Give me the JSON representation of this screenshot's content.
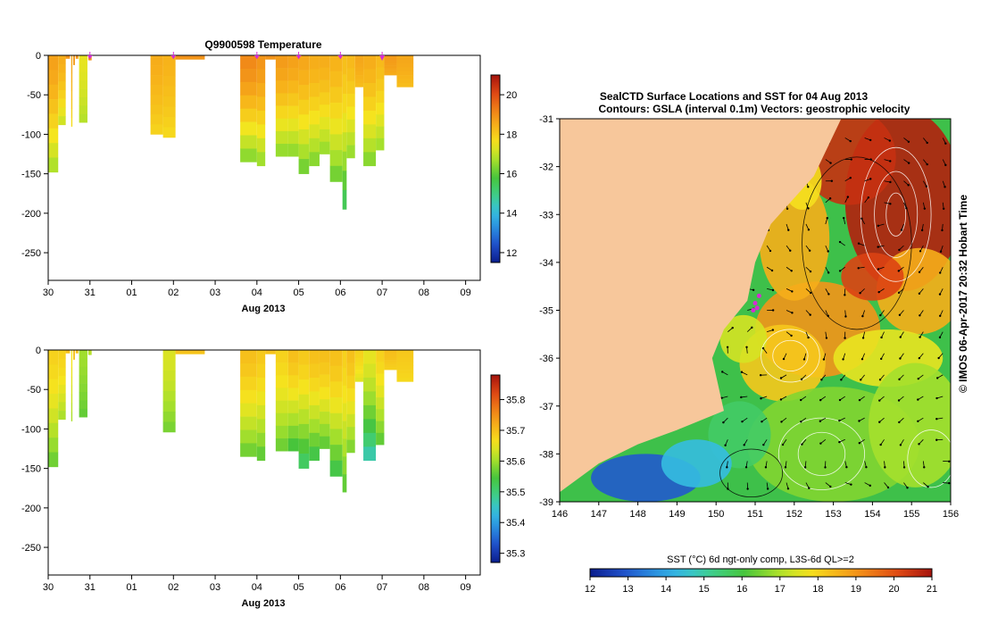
{
  "colors": {
    "land": "#f7c79b",
    "marker": "#d42cd4",
    "white": "#ffffff"
  },
  "chart_data": [
    {
      "type": "heatmap",
      "title": "Q9900598  Temperature",
      "xlabel": "Aug 2013",
      "ylabel": "",
      "x_ticks": [
        "30",
        "31",
        "01",
        "02",
        "03",
        "04",
        "05",
        "06",
        "07",
        "08",
        "09"
      ],
      "y_ticks": [
        "0",
        "-50",
        "-100",
        "-150",
        "-200",
        "-250"
      ],
      "ylim": [
        -285,
        0
      ],
      "colorbar": {
        "range": [
          11.5,
          21
        ],
        "ticks": [
          "12",
          "14",
          "16",
          "18",
          "20"
        ]
      },
      "profile_markers_day": [
        1,
        3,
        5,
        6,
        7,
        8
      ],
      "casts": [
        {
          "start": 0.0,
          "end": 0.24,
          "depth": -148,
          "surface": 18.7,
          "bottom": 16.6
        },
        {
          "start": 0.24,
          "end": 0.42,
          "depth": -88,
          "surface": 18.5,
          "bottom": 17.0
        },
        {
          "start": 0.42,
          "end": 0.52,
          "depth": -4,
          "surface": 19.0,
          "bottom": 18.8
        },
        {
          "start": 0.55,
          "end": 0.58,
          "depth": -90,
          "surface": 18.6,
          "bottom": 17.6
        },
        {
          "start": 0.6,
          "end": 0.64,
          "depth": -12,
          "surface": 18.9,
          "bottom": 18.7
        },
        {
          "start": 0.66,
          "end": 0.72,
          "depth": -4,
          "surface": 19.0,
          "bottom": 18.8
        },
        {
          "start": 0.74,
          "end": 0.94,
          "depth": -85,
          "surface": 17.4,
          "bottom": 16.8
        },
        {
          "start": 0.96,
          "end": 1.04,
          "depth": -6,
          "surface": 19.0,
          "bottom": 18.9
        },
        {
          "start": 2.45,
          "end": 2.75,
          "depth": -100,
          "surface": 18.5,
          "bottom": 17.8
        },
        {
          "start": 2.75,
          "end": 3.05,
          "depth": -104,
          "surface": 18.4,
          "bottom": 17.7
        },
        {
          "start": 3.05,
          "end": 3.75,
          "depth": -5,
          "surface": 19.0,
          "bottom": 18.8
        },
        {
          "start": 4.6,
          "end": 5.0,
          "depth": -135,
          "surface": 19.1,
          "bottom": 16.2
        },
        {
          "start": 5.0,
          "end": 5.2,
          "depth": -140,
          "surface": 18.9,
          "bottom": 16.4
        },
        {
          "start": 5.2,
          "end": 5.45,
          "depth": -5,
          "surface": 19.0,
          "bottom": 18.8
        },
        {
          "start": 5.45,
          "end": 5.75,
          "depth": -128,
          "surface": 18.8,
          "bottom": 16.3
        },
        {
          "start": 5.75,
          "end": 6.0,
          "depth": -128,
          "surface": 18.7,
          "bottom": 16.3
        },
        {
          "start": 6.0,
          "end": 6.25,
          "depth": -150,
          "surface": 18.6,
          "bottom": 16.0
        },
        {
          "start": 6.25,
          "end": 6.5,
          "depth": -140,
          "surface": 18.5,
          "bottom": 16.2
        },
        {
          "start": 6.5,
          "end": 6.75,
          "depth": -125,
          "surface": 18.5,
          "bottom": 16.4
        },
        {
          "start": 6.75,
          "end": 7.05,
          "depth": -160,
          "surface": 18.4,
          "bottom": 16.0
        },
        {
          "start": 7.05,
          "end": 7.15,
          "depth": -195,
          "surface": 18.2,
          "bottom": 15.2
        },
        {
          "start": 7.15,
          "end": 7.35,
          "depth": -130,
          "surface": 18.3,
          "bottom": 16.4
        },
        {
          "start": 7.35,
          "end": 7.55,
          "depth": -40,
          "surface": 18.6,
          "bottom": 18.2
        },
        {
          "start": 7.55,
          "end": 7.85,
          "depth": -140,
          "surface": 18.5,
          "bottom": 16.2
        },
        {
          "start": 7.85,
          "end": 8.05,
          "depth": -120,
          "surface": 18.3,
          "bottom": 16.5
        },
        {
          "start": 8.05,
          "end": 8.35,
          "depth": -25,
          "surface": 18.8,
          "bottom": 18.5
        },
        {
          "start": 8.35,
          "end": 8.75,
          "depth": -40,
          "surface": 18.6,
          "bottom": 18.2
        }
      ]
    },
    {
      "type": "heatmap",
      "title": "",
      "xlabel": "Aug 2013",
      "ylabel": "",
      "x_ticks": [
        "30",
        "31",
        "01",
        "02",
        "03",
        "04",
        "05",
        "06",
        "07",
        "08",
        "09"
      ],
      "y_ticks": [
        "0",
        "-50",
        "-100",
        "-150",
        "-200",
        "-250"
      ],
      "ylim": [
        -285,
        0
      ],
      "colorbar": {
        "range": [
          35.27,
          35.88
        ],
        "ticks": [
          "35.3",
          "35.4",
          "35.5",
          "35.6",
          "35.7",
          "35.8"
        ]
      },
      "casts": [
        {
          "start": 0.0,
          "end": 0.24,
          "depth": -148,
          "surface": 35.68,
          "bottom": 35.56
        },
        {
          "start": 0.24,
          "end": 0.42,
          "depth": -88,
          "surface": 35.68,
          "bottom": 35.6
        },
        {
          "start": 0.42,
          "end": 0.52,
          "depth": -4,
          "surface": 35.7,
          "bottom": 35.69
        },
        {
          "start": 0.55,
          "end": 0.58,
          "depth": -90,
          "surface": 35.66,
          "bottom": 35.6
        },
        {
          "start": 0.6,
          "end": 0.64,
          "depth": -12,
          "surface": 35.7,
          "bottom": 35.69
        },
        {
          "start": 0.66,
          "end": 0.72,
          "depth": -4,
          "surface": 35.7,
          "bottom": 35.69
        },
        {
          "start": 0.74,
          "end": 0.94,
          "depth": -85,
          "surface": 35.6,
          "bottom": 35.56
        },
        {
          "start": 0.96,
          "end": 1.04,
          "depth": -6,
          "surface": 35.62,
          "bottom": 35.61
        },
        {
          "start": 2.75,
          "end": 3.05,
          "depth": -104,
          "surface": 35.64,
          "bottom": 35.57
        },
        {
          "start": 3.05,
          "end": 3.75,
          "depth": -5,
          "surface": 35.7,
          "bottom": 35.69
        },
        {
          "start": 4.6,
          "end": 5.0,
          "depth": -135,
          "surface": 35.7,
          "bottom": 35.56
        },
        {
          "start": 5.0,
          "end": 5.2,
          "depth": -140,
          "surface": 35.69,
          "bottom": 35.55
        },
        {
          "start": 5.2,
          "end": 5.45,
          "depth": -5,
          "surface": 35.7,
          "bottom": 35.69
        },
        {
          "start": 5.45,
          "end": 5.75,
          "depth": -128,
          "surface": 35.68,
          "bottom": 35.56
        },
        {
          "start": 5.75,
          "end": 6.0,
          "depth": -128,
          "surface": 35.7,
          "bottom": 35.53
        },
        {
          "start": 6.0,
          "end": 6.25,
          "depth": -150,
          "surface": 35.69,
          "bottom": 35.5
        },
        {
          "start": 6.25,
          "end": 6.5,
          "depth": -140,
          "surface": 35.7,
          "bottom": 35.52
        },
        {
          "start": 6.5,
          "end": 6.75,
          "depth": -125,
          "surface": 35.7,
          "bottom": 35.55
        },
        {
          "start": 6.75,
          "end": 7.05,
          "depth": -160,
          "surface": 35.7,
          "bottom": 35.52
        },
        {
          "start": 7.05,
          "end": 7.15,
          "depth": -180,
          "surface": 35.68,
          "bottom": 35.55
        },
        {
          "start": 7.15,
          "end": 7.35,
          "depth": -130,
          "surface": 35.7,
          "bottom": 35.57
        },
        {
          "start": 7.35,
          "end": 7.55,
          "depth": -40,
          "surface": 35.68,
          "bottom": 35.64
        },
        {
          "start": 7.55,
          "end": 7.85,
          "depth": -140,
          "surface": 35.65,
          "bottom": 35.45
        },
        {
          "start": 7.85,
          "end": 8.05,
          "depth": -120,
          "surface": 35.68,
          "bottom": 35.55
        },
        {
          "start": 8.05,
          "end": 8.35,
          "depth": -25,
          "surface": 35.7,
          "bottom": 35.68
        },
        {
          "start": 8.35,
          "end": 8.75,
          "depth": -40,
          "surface": 35.69,
          "bottom": 35.67
        }
      ]
    },
    {
      "type": "map",
      "title": "SealCTD Surface Locations and SST for 04 Aug 2013",
      "subtitle": "Contours: GSLA (interval 0.1m) Vectors: geostrophic velocity",
      "xlim": [
        146,
        156
      ],
      "ylim": [
        -39,
        -31
      ],
      "x_ticks": [
        "146",
        "147",
        "148",
        "149",
        "150",
        "151",
        "152",
        "153",
        "154",
        "155",
        "156"
      ],
      "y_ticks": [
        "-31",
        "-32",
        "-33",
        "-34",
        "-35",
        "-36",
        "-37",
        "-38",
        "-39"
      ],
      "side_label": "© IMOS 06-Apr-2017 20:32 Hobart Time",
      "colorbar_title": "SST (°C) 6d ngt-only comp, L3S-6d QL>=2",
      "colorbar": {
        "range": [
          12,
          21
        ],
        "ticks": [
          "12",
          "13",
          "14",
          "15",
          "16",
          "17",
          "18",
          "19",
          "20",
          "21"
        ]
      },
      "coastline": [
        [
          146,
          -38.8
        ],
        [
          147,
          -38.2
        ],
        [
          148,
          -37.8
        ],
        [
          149,
          -37.5
        ],
        [
          150.2,
          -37.1
        ],
        [
          149.9,
          -36.0
        ],
        [
          150.2,
          -35.4
        ],
        [
          150.8,
          -34.8
        ],
        [
          151.0,
          -34.0
        ],
        [
          151.4,
          -33.2
        ],
        [
          152.5,
          -32.2
        ],
        [
          153.2,
          -31.0
        ]
      ],
      "warm_core_eddy": {
        "lon": 151.9,
        "lat": -35.9,
        "sst": 18.5
      },
      "seal_locations": [
        [
          151.0,
          -34.85
        ],
        [
          151.05,
          -34.95
        ],
        [
          150.95,
          -35.0
        ],
        [
          151.1,
          -34.7
        ]
      ]
    }
  ]
}
